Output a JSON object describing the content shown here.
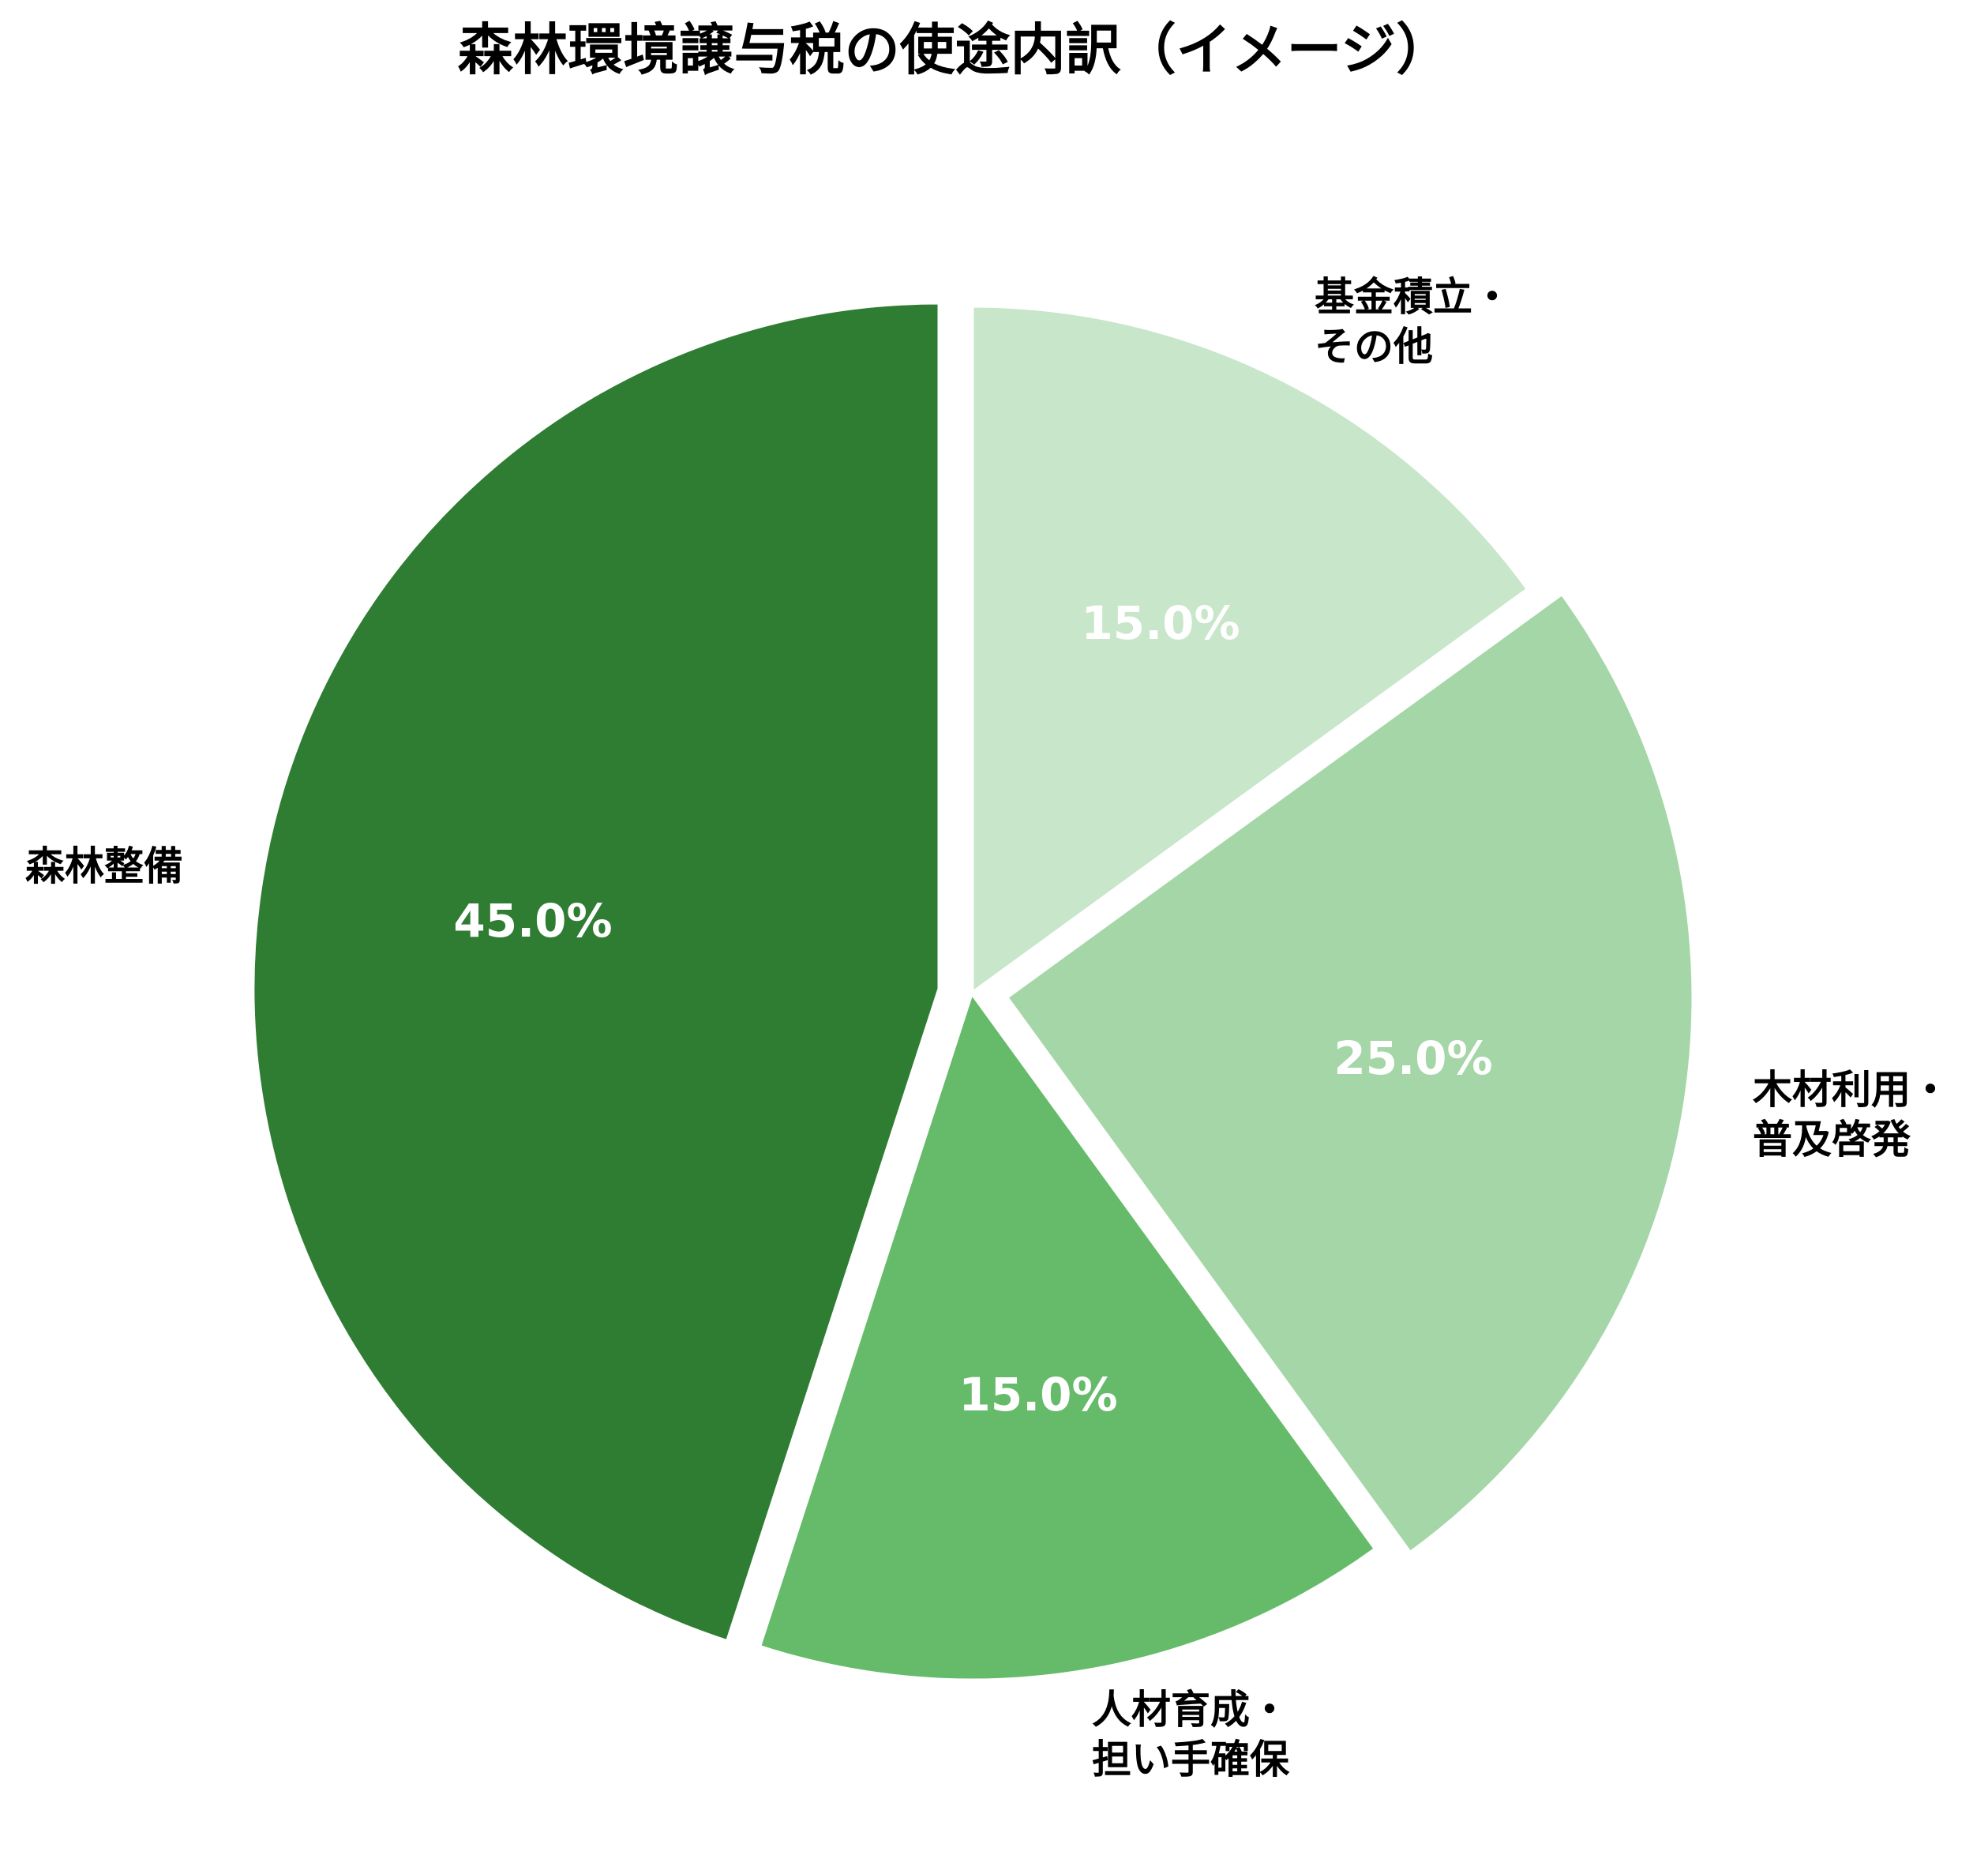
{
  "chart_data": {
    "type": "pie",
    "title": "森林環境譲与税の使途内訳（イメージ）",
    "start_angle": 90,
    "direction": "clockwise",
    "explode": true,
    "categories": [
      "基金積立・その他",
      "木材利用・普及啓発",
      "人材育成・担い手確保",
      "森林整備"
    ],
    "values": [
      15.0,
      25.0,
      15.0,
      45.0
    ],
    "value_labels": [
      "15.0%",
      "25.0%",
      "15.0%",
      "45.0%"
    ],
    "colors": [
      "#c8e6c9",
      "#a5d6a7",
      "#66bb6a",
      "#2e7d32"
    ],
    "legend": "none",
    "slices": [
      {
        "label_lines": [
          "基金積立・",
          "その他"
        ],
        "value": 15.0,
        "pct_text": "15.0%",
        "color": "#c8e6c9"
      },
      {
        "label_lines": [
          "木材利用・",
          "普及啓発"
        ],
        "value": 25.0,
        "pct_text": "25.0%",
        "color": "#a5d6a7"
      },
      {
        "label_lines": [
          "人材育成・",
          "担い手確保"
        ],
        "value": 15.0,
        "pct_text": "15.0%",
        "color": "#66bb6a"
      },
      {
        "label_lines": [
          "森林整備"
        ],
        "value": 45.0,
        "pct_text": "45.0%",
        "color": "#2e7d32"
      }
    ]
  }
}
